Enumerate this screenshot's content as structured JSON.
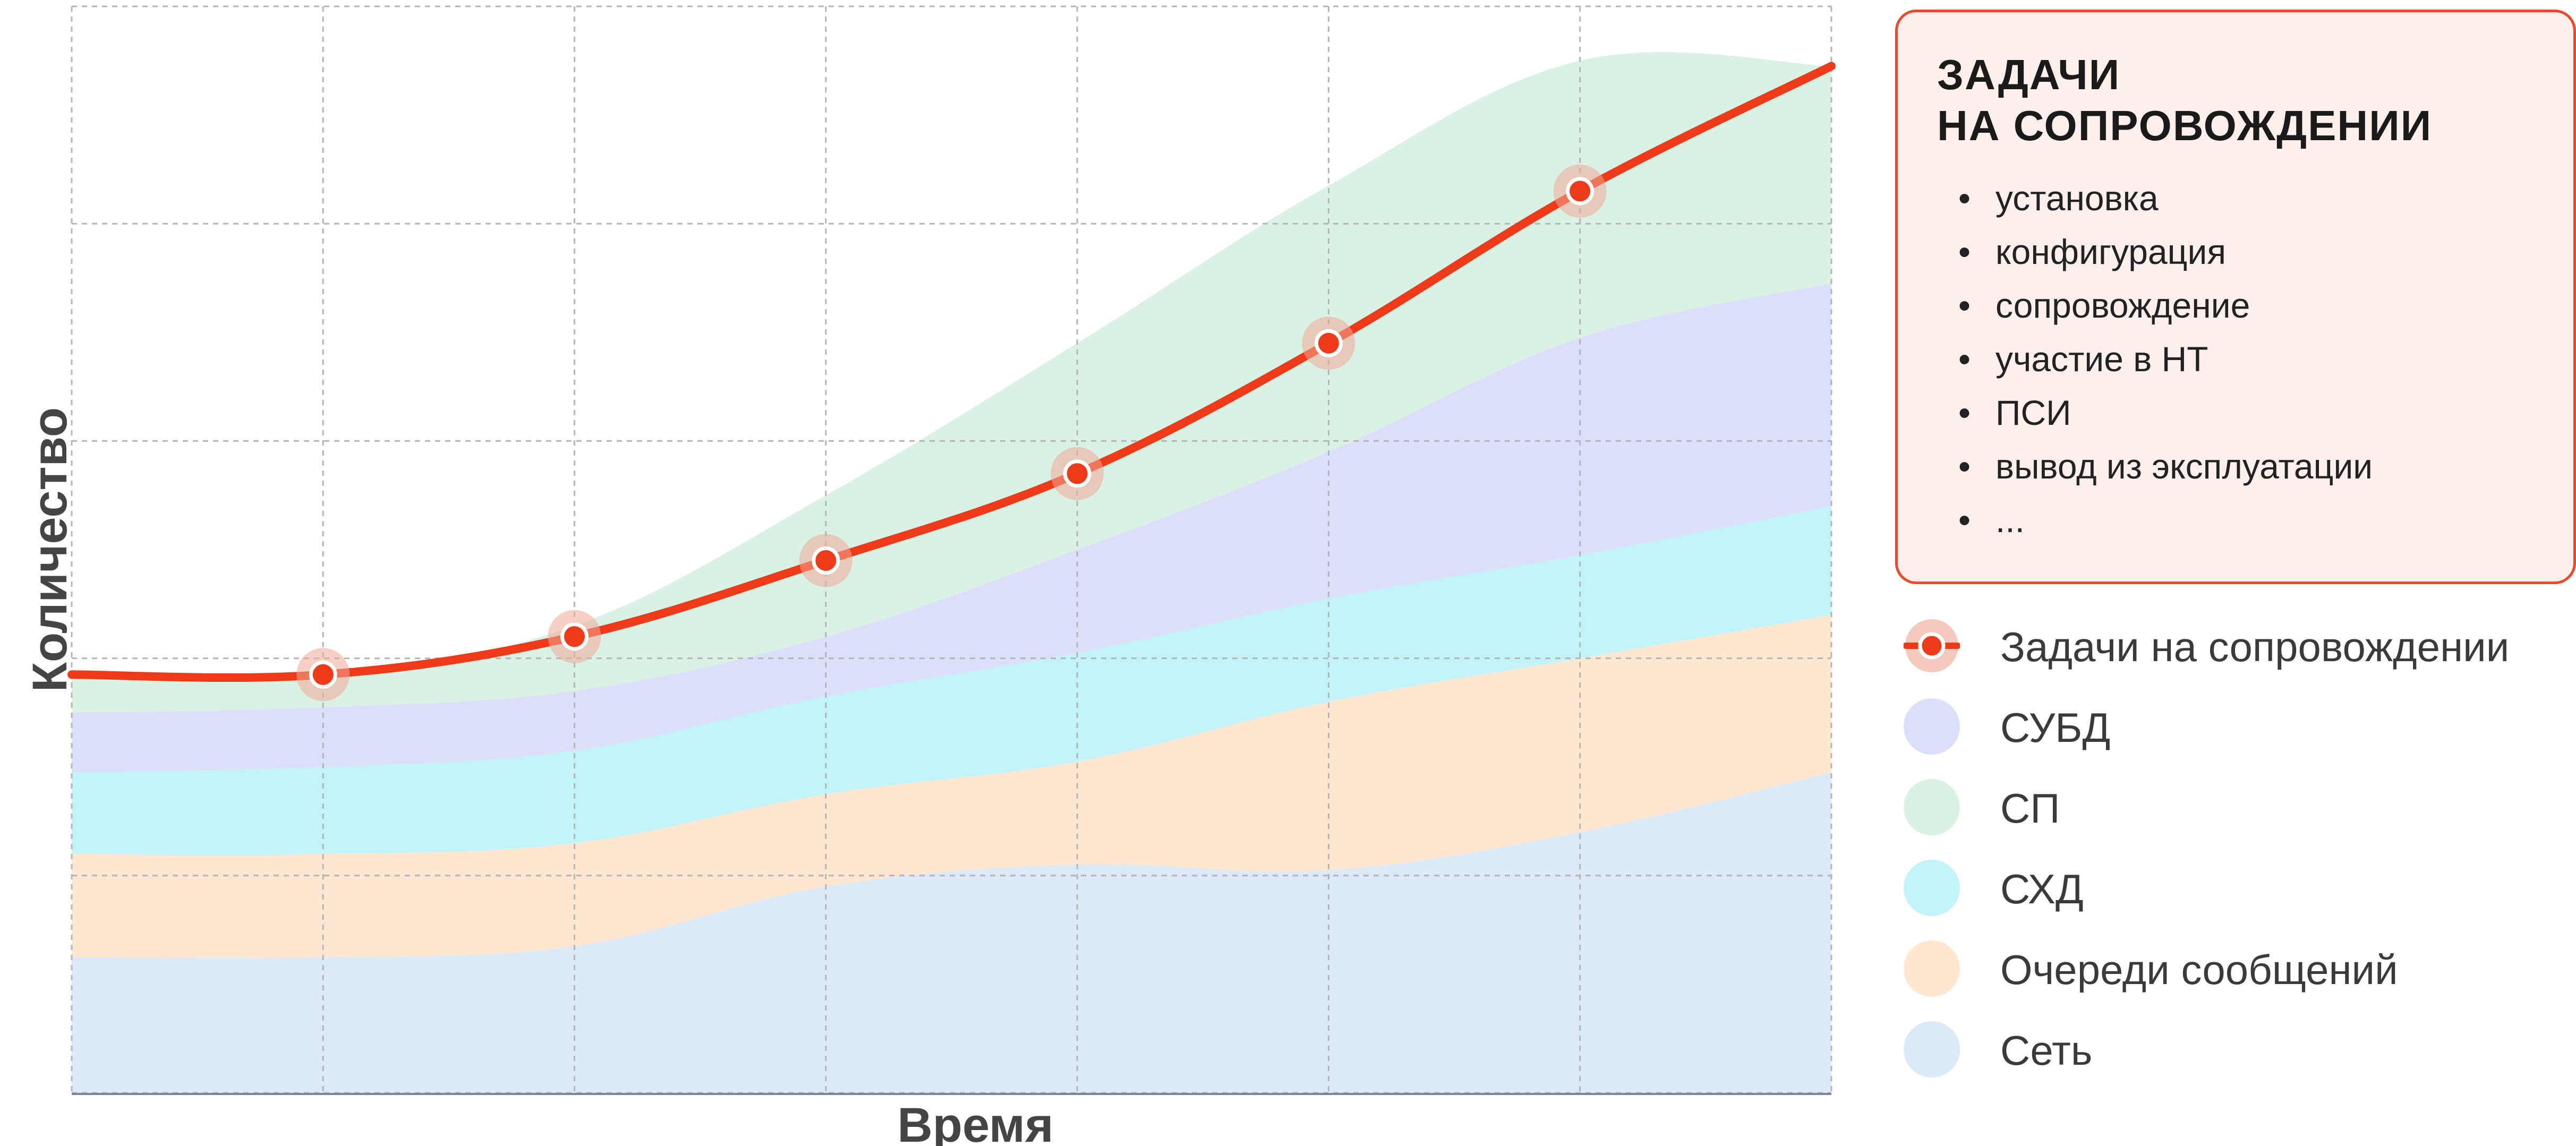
{
  "chart_data": {
    "type": "area",
    "stacked": true,
    "x": [
      0,
      1,
      2,
      3,
      4,
      5,
      6,
      7
    ],
    "xlim": [
      0,
      7
    ],
    "ylim": [
      0,
      10
    ],
    "xlabel": "Время",
    "ylabel": "Количество",
    "grid": true,
    "tick_labels": false,
    "series": [
      {
        "name": "Сеть",
        "color": "#dbe9f9",
        "values": [
          1.25,
          1.25,
          1.35,
          1.9,
          2.1,
          2.05,
          2.4,
          2.95
        ]
      },
      {
        "name": "Очереди сообщений",
        "color": "#fde7d1",
        "values": [
          0.95,
          0.95,
          0.95,
          0.85,
          0.95,
          1.55,
          1.6,
          1.45
        ]
      },
      {
        "name": "СХД",
        "color": "#c2f3f8",
        "values": [
          0.75,
          0.8,
          0.85,
          0.9,
          1.0,
          0.95,
          0.95,
          1.0
        ]
      },
      {
        "name": "СУБД",
        "color": "#dcdffa",
        "values": [
          0.55,
          0.55,
          0.55,
          0.55,
          0.95,
          1.35,
          2.0,
          2.05
        ]
      },
      {
        "name": "СП",
        "color": "#daf2e4",
        "values": [
          0.35,
          0.3,
          0.6,
          1.3,
          1.9,
          2.45,
          2.55,
          2.0
        ]
      }
    ],
    "line": {
      "name": "Задачи на сопровождении",
      "color": "#ee3a18",
      "values": [
        3.85,
        3.85,
        4.2,
        4.9,
        5.7,
        6.9,
        8.3,
        9.45
      ],
      "markers": [
        1,
        2,
        3,
        4,
        5,
        6
      ]
    }
  },
  "callout": {
    "title_line1": "ЗАДАЧИ",
    "title_line2": "НА СОПРОВОЖДЕНИИ",
    "bullet_char": "•",
    "items": [
      "установка",
      "конфигурация",
      "сопровождение",
      "участие в НТ",
      "ПСИ",
      "вывод из эксплуатации",
      "..."
    ]
  },
  "legend": {
    "items": [
      {
        "label": "Задачи на сопровождении",
        "color": "#ee3a18",
        "kind": "line"
      },
      {
        "label": "СУБД",
        "color": "#dcdffa",
        "kind": "area"
      },
      {
        "label": "СП",
        "color": "#daf2e4",
        "kind": "area"
      },
      {
        "label": "СХД",
        "color": "#c2f3f8",
        "kind": "area"
      },
      {
        "label": "Очереди сообщений",
        "color": "#fde7d1",
        "kind": "area"
      },
      {
        "label": "Сеть",
        "color": "#dbe9f9",
        "kind": "area"
      }
    ]
  }
}
